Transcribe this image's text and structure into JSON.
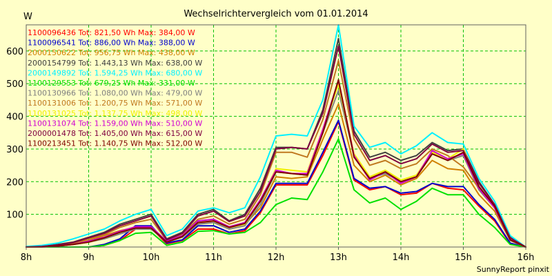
{
  "colors": {
    "background": "#ffffc8",
    "grid": "#00c000"
  },
  "chart_data": {
    "type": "line",
    "title": "Wechselrichtervergleich vom 01.01.2014",
    "ylabel": "W",
    "xlabel": "",
    "footer": "SunnyReport pinxit",
    "x": [
      "8h",
      "8h15",
      "8h30",
      "8h45",
      "9h",
      "9h15",
      "9h30",
      "9h45",
      "10h",
      "10h15",
      "10h30",
      "10h45",
      "11h",
      "11h15",
      "11h30",
      "11h45",
      "12h",
      "12h15",
      "12h30",
      "12h45",
      "13h",
      "13h15",
      "13h30",
      "13h45",
      "14h",
      "14h15",
      "14h30",
      "14h45",
      "15h",
      "15h15",
      "15h30",
      "15h45",
      "16h"
    ],
    "xticks": [
      "8h",
      "9h",
      "10h",
      "11h",
      "12h",
      "13h",
      "14h",
      "15h",
      "16h"
    ],
    "yticks": [
      100,
      200,
      300,
      400,
      500,
      600
    ],
    "xlim": [
      "8h",
      "16h"
    ],
    "ylim": [
      0,
      680
    ],
    "grid": true,
    "legend_position": "top-left",
    "series": [
      {
        "name": "1100096436",
        "legend": "1100096436 Tot: 821,50 Wh Max: 384,00 W",
        "color": "#ff0000",
        "values": [
          0,
          0,
          0,
          0,
          0,
          5,
          20,
          55,
          58,
          10,
          20,
          55,
          55,
          40,
          50,
          105,
          190,
          190,
          190,
          280,
          384,
          205,
          175,
          185,
          160,
          165,
          195,
          180,
          175,
          125,
          80,
          10,
          0
        ]
      },
      {
        "name": "1100096541",
        "legend": "1100096541 Tot: 886,00 Wh Max: 388,00 W",
        "color": "#0000cc",
        "values": [
          0,
          0,
          0,
          0,
          0,
          8,
          25,
          65,
          65,
          12,
          22,
          65,
          65,
          45,
          55,
          110,
          195,
          195,
          195,
          290,
          388,
          210,
          180,
          185,
          165,
          170,
          195,
          185,
          185,
          130,
          85,
          12,
          0
        ]
      },
      {
        "name": "2000150622",
        "legend": "2000150622 Tot: 956,75 Wh Max: 438,00 W",
        "color": "#d08000",
        "values": [
          0,
          0,
          5,
          10,
          20,
          35,
          50,
          60,
          60,
          15,
          30,
          70,
          80,
          60,
          70,
          120,
          215,
          210,
          215,
          330,
          438,
          250,
          200,
          220,
          190,
          210,
          265,
          240,
          235,
          160,
          110,
          20,
          0
        ]
      },
      {
        "name": "2000154799",
        "legend": "2000154799 Tot: 1.443,13 Wh Max: 638,00 W",
        "color": "#404040",
        "values": [
          0,
          2,
          8,
          15,
          30,
          45,
          70,
          85,
          100,
          25,
          45,
          100,
          115,
          80,
          100,
          180,
          305,
          305,
          300,
          420,
          638,
          355,
          275,
          290,
          265,
          280,
          320,
          295,
          300,
          200,
          130,
          30,
          0
        ]
      },
      {
        "name": "2000149892",
        "legend": "2000149892 Tot: 1.594,25 Wh Max: 680,00 W",
        "color": "#00f0ff",
        "values": [
          2,
          5,
          12,
          25,
          40,
          55,
          80,
          100,
          115,
          35,
          55,
          110,
          120,
          105,
          120,
          215,
          340,
          345,
          340,
          450,
          680,
          370,
          305,
          320,
          285,
          310,
          350,
          320,
          315,
          210,
          140,
          35,
          0
        ]
      },
      {
        "name": "1100129553",
        "legend": "1100129553 Tot: 679,25 Wh Max: 331,00 W",
        "color": "#00e000",
        "values": [
          0,
          0,
          0,
          0,
          0,
          5,
          20,
          42,
          45,
          5,
          15,
          48,
          50,
          40,
          45,
          75,
          130,
          150,
          145,
          230,
          331,
          175,
          135,
          150,
          115,
          140,
          180,
          160,
          160,
          100,
          60,
          8,
          0
        ]
      },
      {
        "name": "1100130966",
        "legend": "1100130966 Tot: 1.080,00 Wh Max: 479,00 W",
        "color": "#808080",
        "values": [
          0,
          0,
          3,
          8,
          15,
          25,
          40,
          55,
          55,
          15,
          30,
          70,
          75,
          55,
          65,
          130,
          230,
          225,
          220,
          350,
          479,
          280,
          210,
          225,
          200,
          215,
          285,
          265,
          280,
          175,
          120,
          20,
          0
        ]
      },
      {
        "name": "1100131006",
        "legend": "1100131006 Tot: 1.200,75 Wh Max: 571,00 W",
        "color": "#c07820",
        "values": [
          0,
          1,
          5,
          12,
          25,
          38,
          60,
          75,
          85,
          20,
          40,
          85,
          95,
          70,
          85,
          160,
          290,
          290,
          275,
          390,
          571,
          330,
          250,
          265,
          240,
          255,
          300,
          280,
          245,
          180,
          120,
          25,
          0
        ]
      },
      {
        "name": "1100131025",
        "legend": "1100131025 Tot: 1.137,75 Wh Max: 498,00 W",
        "color": "#f0f000",
        "values": [
          0,
          0,
          3,
          8,
          15,
          28,
          45,
          60,
          60,
          15,
          32,
          75,
          80,
          60,
          70,
          140,
          240,
          235,
          230,
          360,
          498,
          285,
          215,
          235,
          205,
          220,
          290,
          270,
          300,
          185,
          125,
          22,
          0
        ]
      },
      {
        "name": "1100131074",
        "legend": "1100131074 Tot: 1.159,00 Wh Max: 510,00 W",
        "color": "#d000d0",
        "values": [
          0,
          0,
          3,
          8,
          18,
          30,
          48,
          62,
          62,
          18,
          35,
          80,
          85,
          62,
          75,
          145,
          235,
          225,
          225,
          360,
          510,
          280,
          205,
          230,
          195,
          215,
          295,
          270,
          285,
          180,
          120,
          22,
          0
        ]
      },
      {
        "name": "2000001478",
        "legend": "2000001478 Tot: 1.405,00 Wh Max: 615,00 W",
        "color": "#800040",
        "values": [
          0,
          2,
          6,
          14,
          28,
          42,
          65,
          80,
          95,
          22,
          42,
          95,
          110,
          78,
          95,
          170,
          300,
          305,
          300,
          410,
          615,
          345,
          265,
          280,
          255,
          270,
          315,
          290,
          295,
          195,
          130,
          28,
          0
        ]
      },
      {
        "name": "1100213451",
        "legend": "1100213451 Tot: 1.140,75 Wh Max: 512,00 W",
        "color": "#800000",
        "values": [
          0,
          0,
          3,
          8,
          15,
          28,
          45,
          58,
          58,
          15,
          32,
          75,
          80,
          60,
          72,
          140,
          230,
          225,
          220,
          350,
          512,
          275,
          210,
          230,
          200,
          215,
          285,
          265,
          290,
          185,
          125,
          22,
          0
        ]
      }
    ]
  }
}
